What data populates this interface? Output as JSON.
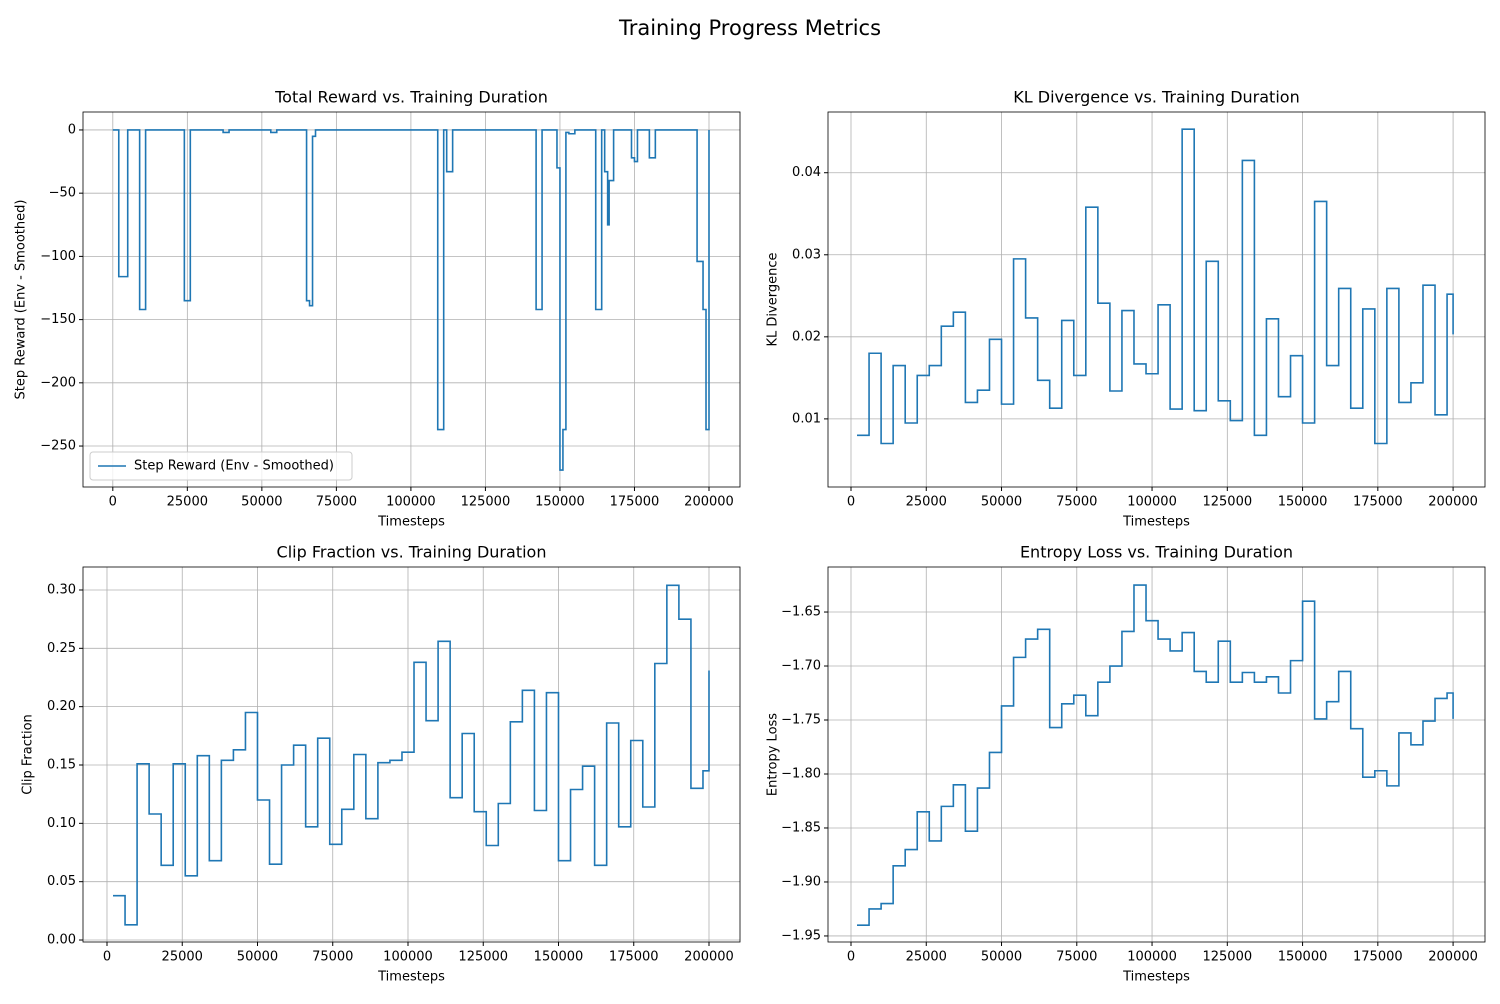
{
  "title": "Training Progress Metrics",
  "chart_data": [
    {
      "type": "line",
      "step": true,
      "title": "Total Reward vs. Training Duration",
      "xlabel": "Timesteps",
      "ylabel": "Step Reward (Env - Smoothed)",
      "x": [
        0,
        2000,
        5000,
        9000,
        11000,
        24000,
        26000,
        37000,
        39000,
        53000,
        55000,
        65000,
        66000,
        67000,
        68000,
        109000,
        111000,
        112000,
        114000,
        142000,
        144000,
        149000,
        150000,
        151000,
        152000,
        153000,
        155000,
        162000,
        164000,
        165000,
        166000,
        166500,
        168000,
        174000,
        175000,
        176000,
        180000,
        182000,
        196000,
        198000,
        199000,
        200000
      ],
      "series": [
        {
          "name": "Step Reward (Env - Smoothed)",
          "color": "#1f77b4",
          "values": [
            0,
            -116,
            0,
            -142,
            0,
            -135,
            0,
            -2,
            0,
            -2,
            0,
            -135,
            -139,
            -5,
            0,
            -237,
            0,
            -33,
            0,
            -142,
            0,
            -30,
            -269,
            -237,
            -2,
            -3,
            0,
            -142,
            0,
            -33,
            -75,
            -40,
            0,
            -22,
            -25,
            0,
            -22,
            0,
            -104,
            -142,
            -237,
            0
          ]
        }
      ],
      "xlim": [
        -10000,
        210400
      ],
      "ylim": [
        -282.4,
        14.2
      ],
      "xticks": [
        0,
        25000,
        50000,
        75000,
        100000,
        125000,
        150000,
        175000,
        200000
      ],
      "yticks": [
        {
          "value": -250,
          "label": "−250"
        },
        {
          "value": -200,
          "label": "−200"
        },
        {
          "value": -150,
          "label": "−150"
        },
        {
          "value": -100,
          "label": "−100"
        },
        {
          "value": -50,
          "label": "−50"
        },
        0
      ],
      "grid": true,
      "legend": "lower left"
    },
    {
      "type": "line",
      "step": true,
      "title": "KL Divergence vs. Training Duration",
      "xlabel": "Timesteps",
      "ylabel": "KL Divergence",
      "x": [
        2000,
        6000,
        10000,
        14000,
        18000,
        22000,
        26000,
        30000,
        34000,
        38000,
        42000,
        46000,
        50000,
        54000,
        58000,
        62000,
        66000,
        70000,
        74000,
        78000,
        82000,
        86000,
        90000,
        94000,
        98000,
        102000,
        106000,
        110000,
        114000,
        118000,
        122000,
        126000,
        130000,
        134000,
        138000,
        142000,
        146000,
        150000,
        154000,
        158000,
        162000,
        166000,
        170000,
        174000,
        178000,
        182000,
        186000,
        190000,
        194000,
        198000,
        200000
      ],
      "series": [
        {
          "color": "#1f77b4",
          "values": [
            0.008,
            0.018,
            0.007,
            0.0165,
            0.0095,
            0.0153,
            0.0165,
            0.0213,
            0.023,
            0.012,
            0.0135,
            0.0197,
            0.0118,
            0.0295,
            0.0223,
            0.0147,
            0.0113,
            0.022,
            0.0153,
            0.0358,
            0.0241,
            0.0134,
            0.0232,
            0.0167,
            0.0155,
            0.0239,
            0.0112,
            0.0453,
            0.011,
            0.0292,
            0.0122,
            0.0098,
            0.0415,
            0.008,
            0.0222,
            0.0127,
            0.0177,
            0.0095,
            0.0365,
            0.0165,
            0.0259,
            0.0113,
            0.0234,
            0.007,
            0.0259,
            0.012,
            0.0144,
            0.0263,
            0.0105,
            0.0252,
            0.0203
          ]
        }
      ],
      "xlim": [
        -7640,
        210600
      ],
      "ylim": [
        0.0017,
        0.0474
      ],
      "xticks": [
        0,
        25000,
        50000,
        75000,
        100000,
        125000,
        150000,
        175000,
        200000
      ],
      "yticks": [
        0.01,
        0.02,
        0.03,
        0.04
      ],
      "grid": true
    },
    {
      "type": "line",
      "step": true,
      "title": "Clip Fraction vs. Training Duration",
      "xlabel": "Timesteps",
      "ylabel": "Clip Fraction",
      "x": [
        2000,
        6000,
        10000,
        14000,
        18000,
        22000,
        26000,
        30000,
        34000,
        38000,
        42000,
        46000,
        50000,
        54000,
        58000,
        62000,
        66000,
        70000,
        74000,
        78000,
        82000,
        86000,
        90000,
        94000,
        98000,
        102000,
        106000,
        110000,
        114000,
        118000,
        122000,
        126000,
        130000,
        134000,
        138000,
        142000,
        146000,
        150000,
        154000,
        158000,
        162000,
        166000,
        170000,
        174000,
        178000,
        182000,
        186000,
        190000,
        194000,
        198000,
        200000
      ],
      "series": [
        {
          "color": "#1f77b4",
          "values": [
            0.038,
            0.013,
            0.151,
            0.108,
            0.064,
            0.151,
            0.055,
            0.158,
            0.068,
            0.154,
            0.163,
            0.195,
            0.12,
            0.065,
            0.15,
            0.167,
            0.097,
            0.173,
            0.082,
            0.112,
            0.159,
            0.104,
            0.152,
            0.154,
            0.161,
            0.238,
            0.188,
            0.256,
            0.122,
            0.177,
            0.11,
            0.081,
            0.117,
            0.187,
            0.214,
            0.111,
            0.212,
            0.068,
            0.129,
            0.149,
            0.064,
            0.186,
            0.097,
            0.171,
            0.114,
            0.237,
            0.304,
            0.275,
            0.13,
            0.145,
            0.231
          ]
        }
      ],
      "xlim": [
        -7970,
        210300
      ],
      "ylim": [
        -0.0017,
        0.3197
      ],
      "xticks": [
        0,
        25000,
        50000,
        75000,
        100000,
        125000,
        150000,
        175000,
        200000
      ],
      "yticks": [
        {
          "value": 0,
          "label": "0.00"
        },
        {
          "value": 0.05,
          "label": "0.05"
        },
        {
          "value": 0.1,
          "label": "0.10"
        },
        {
          "value": 0.15,
          "label": "0.15"
        },
        {
          "value": 0.2,
          "label": "0.20"
        },
        {
          "value": 0.25,
          "label": "0.25"
        },
        {
          "value": 0.3,
          "label": "0.30"
        }
      ],
      "grid": true
    },
    {
      "type": "line",
      "step": true,
      "title": "Entropy Loss vs. Training Duration",
      "xlabel": "Timesteps",
      "ylabel": "Entropy Loss",
      "x": [
        2000,
        6000,
        10000,
        14000,
        18000,
        22000,
        26000,
        30000,
        34000,
        38000,
        42000,
        46000,
        50000,
        54000,
        58000,
        62000,
        66000,
        70000,
        74000,
        78000,
        82000,
        86000,
        90000,
        94000,
        98000,
        102000,
        106000,
        110000,
        114000,
        118000,
        122000,
        126000,
        130000,
        134000,
        138000,
        142000,
        146000,
        150000,
        154000,
        158000,
        162000,
        166000,
        170000,
        174000,
        178000,
        182000,
        186000,
        190000,
        194000,
        198000,
        200000
      ],
      "series": [
        {
          "color": "#1f77b4",
          "values": [
            -1.94,
            -1.925,
            -1.92,
            -1.885,
            -1.87,
            -1.835,
            -1.862,
            -1.83,
            -1.81,
            -1.853,
            -1.813,
            -1.78,
            -1.737,
            -1.692,
            -1.675,
            -1.666,
            -1.757,
            -1.735,
            -1.727,
            -1.746,
            -1.715,
            -1.7,
            -1.668,
            -1.625,
            -1.658,
            -1.675,
            -1.686,
            -1.669,
            -1.705,
            -1.715,
            -1.677,
            -1.715,
            -1.706,
            -1.715,
            -1.71,
            -1.725,
            -1.695,
            -1.64,
            -1.749,
            -1.733,
            -1.705,
            -1.758,
            -1.803,
            -1.797,
            -1.811,
            -1.762,
            -1.773,
            -1.751,
            -1.73,
            -1.725,
            -1.749
          ]
        }
      ],
      "xlim": [
        -7640,
        210600
      ],
      "ylim": [
        -1.9556,
        -1.6083
      ],
      "xticks": [
        0,
        25000,
        50000,
        75000,
        100000,
        125000,
        150000,
        175000,
        200000
      ],
      "yticks": [
        {
          "value": -1.95,
          "label": "−1.95"
        },
        {
          "value": -1.9,
          "label": "−1.90"
        },
        {
          "value": -1.85,
          "label": "−1.85"
        },
        {
          "value": -1.8,
          "label": "−1.80"
        },
        {
          "value": -1.75,
          "label": "−1.75"
        },
        {
          "value": -1.7,
          "label": "−1.70"
        },
        {
          "value": -1.65,
          "label": "−1.65"
        }
      ],
      "grid": true
    }
  ]
}
